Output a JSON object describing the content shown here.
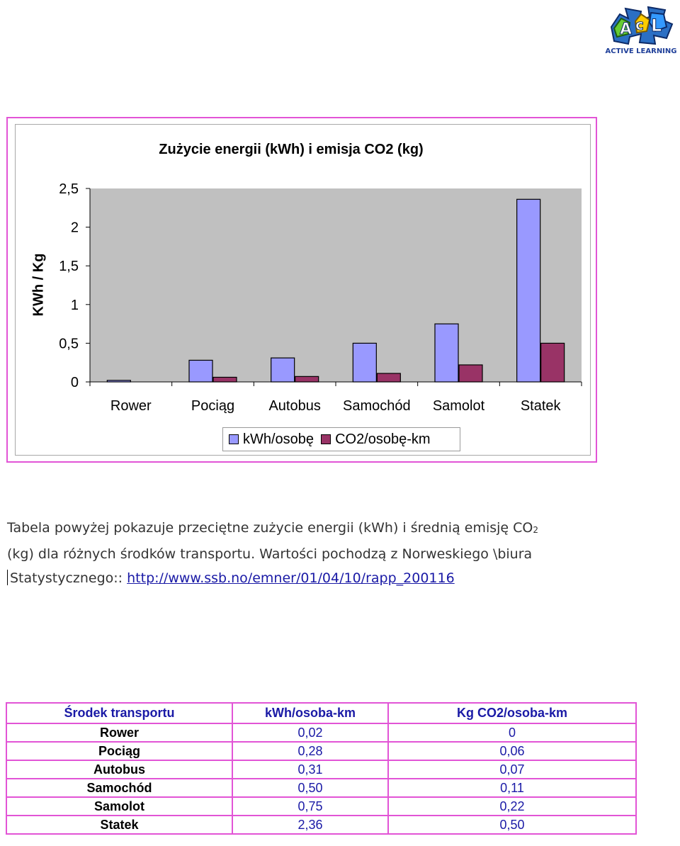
{
  "logo": {
    "text": "ACTIVE LEARNING",
    "monogram": "AcL"
  },
  "chart_data": {
    "type": "bar",
    "title": "Zużycie energii (kWh) i emisja CO2 (kg)",
    "xlabel": "",
    "ylabel": "KWh / Kg",
    "ylim": [
      0,
      2.5
    ],
    "yticks": [
      "0",
      "0,5",
      "1",
      "1,5",
      "2",
      "2,5"
    ],
    "ytick_values": [
      0,
      0.5,
      1,
      1.5,
      2,
      2.5
    ],
    "categories": [
      "Rower",
      "Pociąg",
      "Autobus",
      "Samochód",
      "Samolot",
      "Statek"
    ],
    "series": [
      {
        "name": "kWh/osobę",
        "color": "#9999ff",
        "values": [
          0.02,
          0.28,
          0.31,
          0.5,
          0.75,
          2.36
        ]
      },
      {
        "name": "CO2/osobę-km",
        "color": "#993366",
        "values": [
          0,
          0.06,
          0.07,
          0.11,
          0.22,
          0.5
        ]
      }
    ],
    "plot_background": "#c0c0c0",
    "grid": false,
    "legend_position": "bottom"
  },
  "paragraph": {
    "line1_prefix": "Tabela powyżej pokazuje przeciętne zużycie energii (kWh) i średnią emisję CO",
    "line1_sub": "2",
    "line2": "(kg) dla różnych środków transportu. Wartości pochodzą z Norweskiego \\biura",
    "line3_prefix": "Statystycznego:: ",
    "link": "http://www.ssb.no/emner/01/04/10/rapp_200116"
  },
  "table": {
    "headers": [
      "Środek transportu",
      "kWh/osoba-km",
      "Kg CO2/osoba-km"
    ],
    "rows": [
      [
        "Rower",
        "0,02",
        "0"
      ],
      [
        "Pociąg",
        "0,28",
        "0,06"
      ],
      [
        "Autobus",
        "0,31",
        "0,07"
      ],
      [
        "Samochód",
        "0,50",
        "0,11"
      ],
      [
        "Samolot",
        "0,75",
        "0,22"
      ],
      [
        "Statek",
        "2,36",
        "0,50"
      ]
    ]
  }
}
